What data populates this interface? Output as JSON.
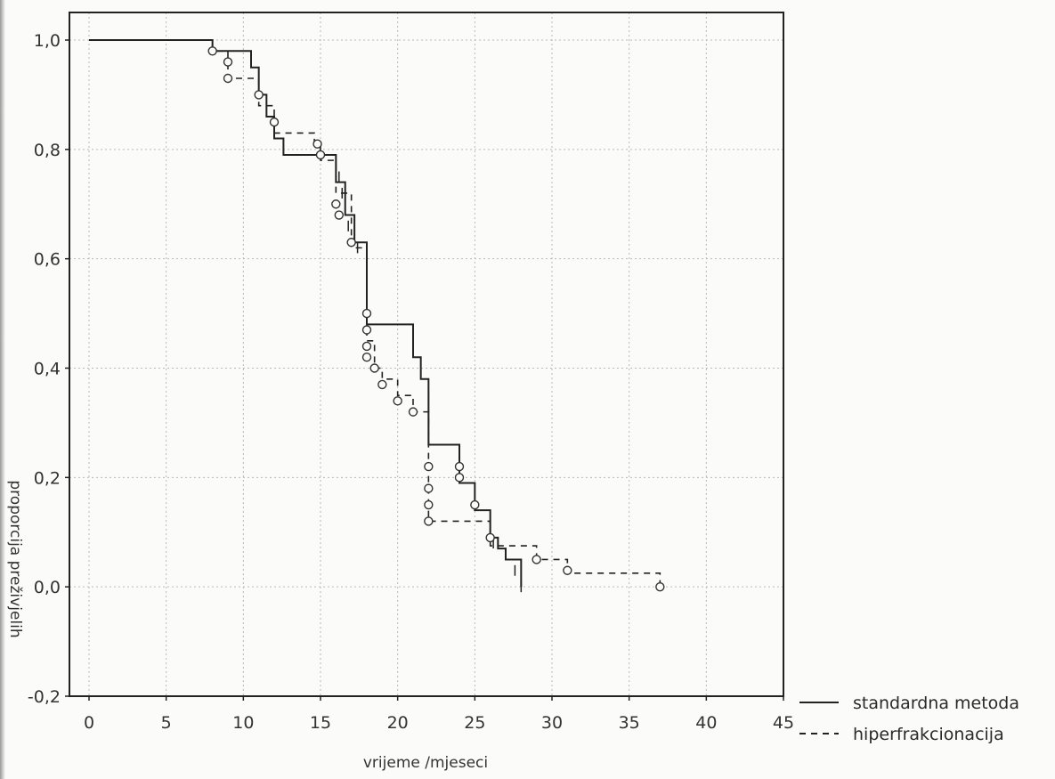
{
  "chart_data": {
    "type": "line",
    "title": "",
    "xlabel": "vrijeme /mjeseci",
    "ylabel": "proporcija preživjelih",
    "xlim": [
      0,
      45
    ],
    "ylim": [
      -0.2,
      1.0
    ],
    "xticks": [
      "0",
      "5",
      "10",
      "15",
      "20",
      "25",
      "30",
      "35",
      "40",
      "45"
    ],
    "yticks": [
      "-0,2",
      "0,0",
      "0,2",
      "0,4",
      "0,6",
      "0,8",
      "1,0"
    ],
    "grid": true,
    "legend_position": "bottom-right, outside plot",
    "series": [
      {
        "name": "standardna metoda",
        "line_style": "solid",
        "steps": [
          [
            0,
            1.0
          ],
          [
            8,
            0.98
          ],
          [
            10.5,
            0.95
          ],
          [
            11,
            0.9
          ],
          [
            11.5,
            0.86
          ],
          [
            12,
            0.82
          ],
          [
            12.6,
            0.79
          ],
          [
            16,
            0.74
          ],
          [
            16.6,
            0.68
          ],
          [
            17.2,
            0.63
          ],
          [
            18,
            0.48
          ],
          [
            21,
            0.42
          ],
          [
            21.5,
            0.38
          ],
          [
            22,
            0.26
          ],
          [
            24,
            0.19
          ],
          [
            25,
            0.14
          ],
          [
            26,
            0.09
          ],
          [
            26.5,
            0.07
          ],
          [
            27,
            0.05
          ],
          [
            28,
            0.0
          ]
        ],
        "censored": [
          [
            16,
            0.77
          ],
          [
            16.2,
            0.75
          ],
          [
            16.4,
            0.72
          ],
          [
            16.8,
            0.66
          ],
          [
            17.4,
            0.62
          ],
          [
            18,
            0.58
          ],
          [
            18,
            0.56
          ],
          [
            18,
            0.54
          ],
          [
            22,
            0.35
          ],
          [
            22,
            0.33
          ],
          [
            22,
            0.3
          ],
          [
            22,
            0.27
          ],
          [
            26.2,
            0.08
          ],
          [
            27.6,
            0.03
          ],
          [
            28,
            0.0
          ]
        ]
      },
      {
        "name": "hiperfrakcionacija",
        "line_style": "dashed",
        "steps": [
          [
            0,
            1.0
          ],
          [
            8,
            0.98
          ],
          [
            9,
            0.93
          ],
          [
            11,
            0.88
          ],
          [
            12,
            0.83
          ],
          [
            14.6,
            0.81
          ],
          [
            15,
            0.78
          ],
          [
            16,
            0.72
          ],
          [
            17,
            0.62
          ],
          [
            18,
            0.45
          ],
          [
            18.5,
            0.4
          ],
          [
            19,
            0.38
          ],
          [
            20,
            0.35
          ],
          [
            21,
            0.32
          ],
          [
            22,
            0.12
          ],
          [
            24,
            0.12
          ],
          [
            26,
            0.075
          ],
          [
            29,
            0.05
          ],
          [
            31,
            0.025
          ],
          [
            37,
            0.0
          ]
        ],
        "censored": [
          [
            8,
            0.98
          ],
          [
            9,
            0.96
          ],
          [
            9,
            0.93
          ],
          [
            11,
            0.9
          ],
          [
            12,
            0.85
          ],
          [
            14.8,
            0.81
          ],
          [
            15,
            0.79
          ],
          [
            16,
            0.7
          ],
          [
            16.2,
            0.68
          ],
          [
            17,
            0.63
          ],
          [
            18,
            0.5
          ],
          [
            18,
            0.47
          ],
          [
            18,
            0.44
          ],
          [
            18,
            0.42
          ],
          [
            18.5,
            0.4
          ],
          [
            19,
            0.37
          ],
          [
            20,
            0.34
          ],
          [
            21,
            0.32
          ],
          [
            22,
            0.22
          ],
          [
            22,
            0.18
          ],
          [
            22,
            0.15
          ],
          [
            22,
            0.12
          ],
          [
            24,
            0.22
          ],
          [
            24,
            0.2
          ],
          [
            25,
            0.15
          ],
          [
            26,
            0.09
          ],
          [
            29,
            0.05
          ],
          [
            31,
            0.03
          ],
          [
            37,
            0.0
          ]
        ]
      }
    ]
  }
}
